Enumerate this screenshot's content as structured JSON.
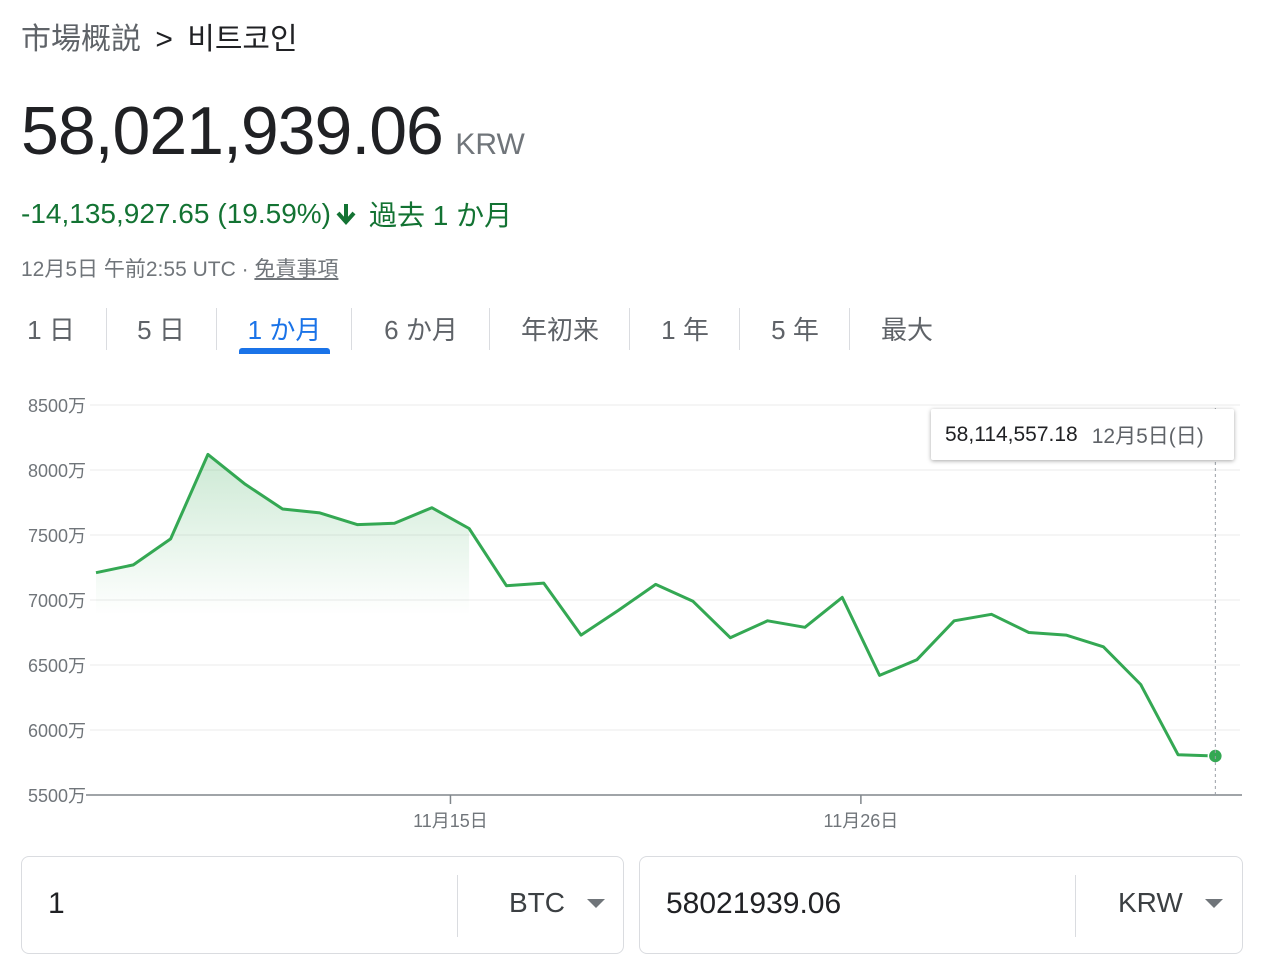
{
  "breadcrumb": {
    "root": "市場概説",
    "separator": ">",
    "current": "비트코인"
  },
  "price": {
    "value": "58,021,939.06",
    "currency": "KRW"
  },
  "change": {
    "amount": "-14,135,927.65",
    "percent": "(19.59%)",
    "period": "過去 1 か月",
    "direction": "down",
    "color": "#137333"
  },
  "timestamp": {
    "text": "12月5日 午前2:55 UTC ·",
    "disclaimer": "免責事項"
  },
  "tabs": [
    {
      "label": "1 日",
      "active": false
    },
    {
      "label": "5 日",
      "active": false
    },
    {
      "label": "1 か月",
      "active": true
    },
    {
      "label": "6 か月",
      "active": false
    },
    {
      "label": "年初来",
      "active": false
    },
    {
      "label": "1 年",
      "active": false
    },
    {
      "label": "5 年",
      "active": false
    },
    {
      "label": "最大",
      "active": false
    }
  ],
  "tooltip": {
    "value": "58,114,557.18",
    "date": "12月5日(日)"
  },
  "chart_data": {
    "type": "line",
    "y_ticks": [
      {
        "value": 55000000,
        "label": "5500万"
      },
      {
        "value": 60000000,
        "label": "6000万"
      },
      {
        "value": 65000000,
        "label": "6500万"
      },
      {
        "value": 70000000,
        "label": "7000万"
      },
      {
        "value": 75000000,
        "label": "7500万"
      },
      {
        "value": 80000000,
        "label": "8000万"
      },
      {
        "value": 85000000,
        "label": "8500万"
      }
    ],
    "ylim": [
      55000000,
      85000000
    ],
    "x_ticks": [
      {
        "day": 10,
        "label": "11月15日"
      },
      {
        "day": 21,
        "label": "11月26日"
      }
    ],
    "x_range": [
      0.5,
      31
    ],
    "grid": true,
    "line_color": "#34a853",
    "fill_until_day": 10,
    "points": [
      {
        "day": 0.5,
        "value": 72100000
      },
      {
        "day": 1.5,
        "value": 72700000
      },
      {
        "day": 2.5,
        "value": 74700000
      },
      {
        "day": 3.5,
        "value": 81200000
      },
      {
        "day": 4.5,
        "value": 78900000
      },
      {
        "day": 5.5,
        "value": 77000000
      },
      {
        "day": 6.5,
        "value": 76700000
      },
      {
        "day": 7.5,
        "value": 75800000
      },
      {
        "day": 8.5,
        "value": 75900000
      },
      {
        "day": 9.5,
        "value": 77100000
      },
      {
        "day": 10.5,
        "value": 75500000
      },
      {
        "day": 11.5,
        "value": 71100000
      },
      {
        "day": 12.5,
        "value": 71300000
      },
      {
        "day": 13.5,
        "value": 67300000
      },
      {
        "day": 14.5,
        "value": 69200000
      },
      {
        "day": 15.5,
        "value": 71200000
      },
      {
        "day": 16.5,
        "value": 69900000
      },
      {
        "day": 17.5,
        "value": 67100000
      },
      {
        "day": 18.5,
        "value": 68400000
      },
      {
        "day": 19.5,
        "value": 67900000
      },
      {
        "day": 20.5,
        "value": 70200000
      },
      {
        "day": 21.5,
        "value": 64200000
      },
      {
        "day": 22.5,
        "value": 65400000
      },
      {
        "day": 23.5,
        "value": 68400000
      },
      {
        "day": 24.5,
        "value": 68900000
      },
      {
        "day": 25.5,
        "value": 67500000
      },
      {
        "day": 26.5,
        "value": 67300000
      },
      {
        "day": 27.5,
        "value": 66400000
      },
      {
        "day": 28.5,
        "value": 63500000
      },
      {
        "day": 29.5,
        "value": 58100000
      },
      {
        "day": 30.5,
        "value": 58000000
      }
    ]
  },
  "converter": {
    "from": {
      "value": "1",
      "currency": "BTC"
    },
    "to": {
      "value": "58021939.06",
      "currency": "KRW"
    }
  }
}
